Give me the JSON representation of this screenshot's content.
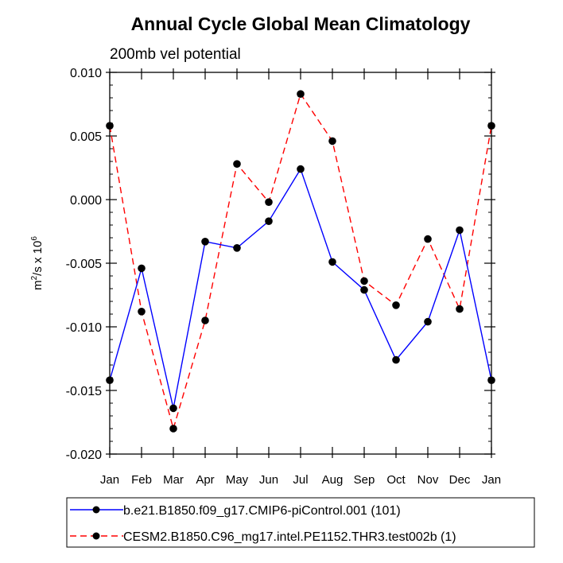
{
  "chart_data": {
    "type": "line",
    "title": "Annual Cycle Global Mean Climatology",
    "subtitle": "200mb vel potential",
    "ylabel": {
      "base": "m",
      "sup1": "2",
      "mid": "/s x 10",
      "sup2": "6"
    },
    "xlabel": "",
    "categories": [
      "Jan",
      "Feb",
      "Mar",
      "Apr",
      "May",
      "Jun",
      "Jul",
      "Aug",
      "Sep",
      "Oct",
      "Nov",
      "Dec",
      "Jan"
    ],
    "ylim": [
      -0.02,
      0.01
    ],
    "yticks": [
      0.01,
      0.005,
      0.0,
      -0.005,
      -0.01,
      -0.015,
      -0.02
    ],
    "ytick_labels": [
      "0.010",
      "0.005",
      "0.000",
      "-0.005",
      "-0.010",
      "-0.015",
      "-0.020"
    ],
    "minor_step": 0.001,
    "grid": false,
    "legend_position": "bottom",
    "series": [
      {
        "name": "b.e21.B1850.f09_g17.CMIP6-piControl.001 (101)",
        "color": "#0000ff",
        "dash": "solid",
        "values": [
          -0.0142,
          -0.0054,
          -0.0164,
          -0.0033,
          -0.0038,
          -0.0017,
          0.0024,
          -0.0049,
          -0.0071,
          -0.0126,
          -0.0096,
          -0.0024,
          -0.0142
        ]
      },
      {
        "name": "CESM2.B1850.C96_mg17.intel.PE1152.THR3.test002b (1)",
        "color": "#ff0000",
        "dash": "dashed",
        "values": [
          0.0058,
          -0.0088,
          -0.018,
          -0.0095,
          0.0028,
          -0.0002,
          0.0083,
          0.0046,
          -0.0064,
          -0.0083,
          -0.0031,
          -0.0086,
          0.0058
        ]
      }
    ]
  }
}
